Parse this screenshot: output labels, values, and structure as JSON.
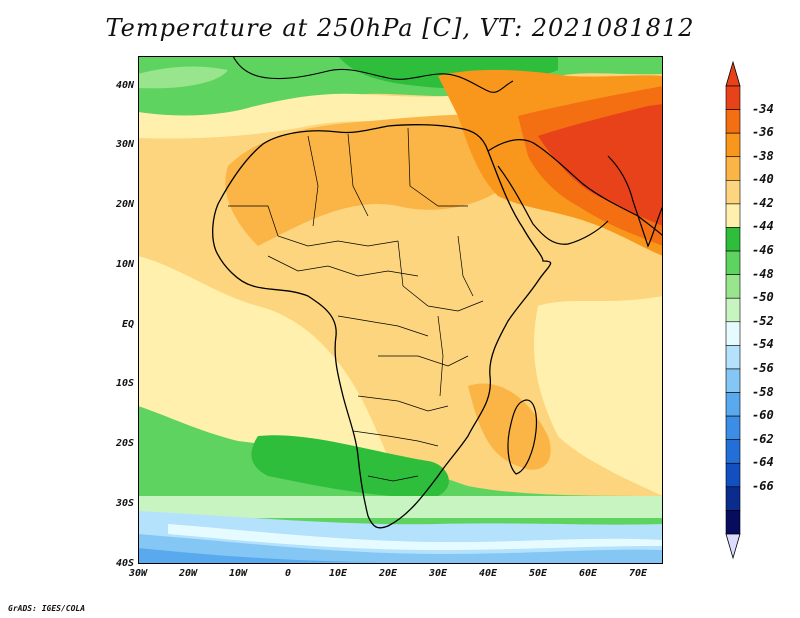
{
  "title": "Temperature at 250hPa [C], VT: 2021081812",
  "credit": "GrADS: IGES/COLA",
  "map": {
    "lat_ticks": [
      "40N",
      "30N",
      "20N",
      "10N",
      "EQ",
      "10S",
      "20S",
      "30S",
      "40S"
    ],
    "lon_ticks": [
      "30W",
      "20W",
      "10W",
      "0",
      "10E",
      "20E",
      "30E",
      "40E",
      "50E",
      "60E",
      "70E"
    ],
    "extent": {
      "lon": [
        -30,
        75
      ],
      "lat": [
        -40,
        45
      ]
    }
  },
  "colorbar": {
    "labels": [
      "-34",
      "-36",
      "-38",
      "-40",
      "-42",
      "-44",
      "-46",
      "-48",
      "-50",
      "-52",
      "-54",
      "-56",
      "-58",
      "-60",
      "-62",
      "-64",
      "-66"
    ],
    "colors": [
      "#e8421a",
      "#f46e12",
      "#f8971c",
      "#fbb446",
      "#fdd57e",
      "#fff1ad",
      "#2fbd3c",
      "#5fd35f",
      "#98e58e",
      "#c8f4c2",
      "#e6fbff",
      "#b4e1fb",
      "#84c6f4",
      "#58a9ee",
      "#3c8de6",
      "#236fd8",
      "#124fc0",
      "#0a2c8c",
      "#080c5e"
    ],
    "top_arrow_color": "#e8421a",
    "bottom_arrow_color": "#dcdcfc"
  }
}
